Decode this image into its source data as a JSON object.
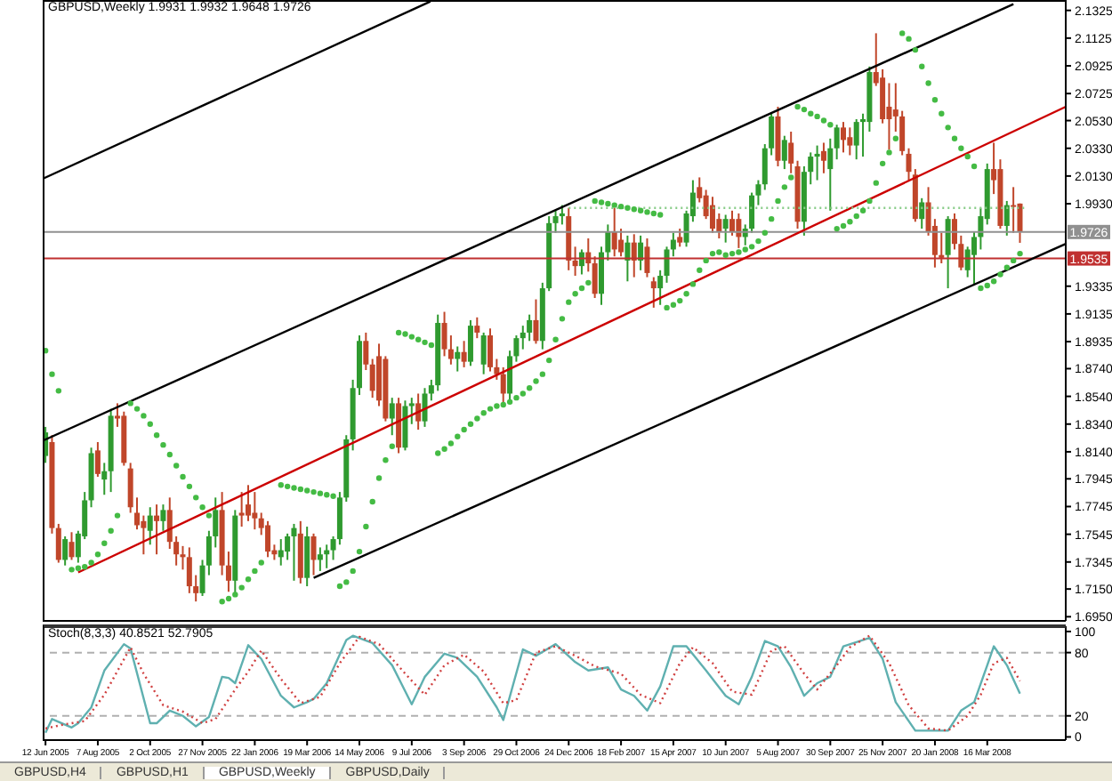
{
  "chart_data": [
    {
      "type": "candlestick",
      "title": "GBPUSD,Weekly  1.9931 1.9932 1.9648 1.9726",
      "tick_labels": "y",
      "colors": [
        "#2f9a2f",
        "#c0462a",
        "#c0462a",
        "#2f9a2f",
        "#c0462a",
        "#2f9a2f",
        "#2f9a2f",
        "#2f9a2f",
        "#c0462a",
        "#2f9a2f",
        "#2f9a2f",
        "#c0462a",
        "#c0462a",
        "#c0462a",
        "#c0462a",
        "#c0462a",
        "#2f9a2f",
        "#c0462a",
        "#2f9a2f",
        "#c0462a",
        "#c0462a",
        "#c0462a",
        "#c0462a",
        "#c0462a",
        "#2f9a2f",
        "#2f9a2f",
        "#2f9a2f",
        "#c0462a",
        "#c0462a",
        "#2f9a2f",
        "#c0462a",
        "#c0462a",
        "#c0462a",
        "#c0462a",
        "#c0462a",
        "#c0462a",
        "#2f9a2f",
        "#2f9a2f",
        "#2f9a2f",
        "#c0462a",
        "#2f9a2f",
        "#c0462a",
        "#2f9a2f",
        "#2f9a2f",
        "#2f9a2f",
        "#2f9a2f",
        "#2f9a2f",
        "#2f9a2f",
        "#2f9a2f",
        "#c0462a",
        "#c0462a",
        "#c0462a",
        "#c0462a",
        "#2f9a2f",
        "#c0462a",
        "#2f9a2f",
        "#2f9a2f",
        "#c0462a",
        "#2f9a2f",
        "#2f9a2f",
        "#2f9a2f",
        "#c0462a",
        "#c0462a",
        "#2f9a2f",
        "#c0462a",
        "#2f9a2f",
        "#c0462a",
        "#2f9a2f",
        "#c0462a",
        "#c0462a",
        "#c0462a",
        "#2f9a2f",
        "#2f9a2f",
        "#2f9a2f",
        "#2f9a2f",
        "#c0462a",
        "#2f9a2f",
        "#2f9a2f",
        "#2f9a2f",
        "#2f9a2f",
        "#c0462a",
        "#c0462a",
        "#2f9a2f",
        "#c0462a",
        "#c0462a",
        "#2f9a2f",
        "#2f9a2f",
        "#c0462a",
        "#c0462a",
        "#2f9a2f",
        "#c0462a",
        "#2f9a2f",
        "#c0462a",
        "#c0462a",
        "#2f9a2f",
        "#2f9a2f",
        "#2f9a2f",
        "#c0462a",
        "#2f9a2f",
        "#2f9a2f",
        "#c0462a",
        "#c0462a",
        "#c0462a",
        "#c0462a",
        "#2f9a2f",
        "#c0462a",
        "#c0462a",
        "#2f9a2f",
        "#2f9a2f",
        "#2f9a2f",
        "#2f9a2f",
        "#2f9a2f",
        "#c0462a",
        "#2f9a2f",
        "#c0462a",
        "#c0462a",
        "#2f9a2f",
        "#2f9a2f",
        "#2f9a2f",
        "#c0462a",
        "#2f9a2f",
        "#2f9a2f",
        "#c0462a",
        "#c0462a",
        "#2f9a2f",
        "#2f9a2f",
        "#2f9a2f",
        "#c0462a",
        "#c0462a",
        "#c0462a",
        "#c0462a",
        "#c0462a",
        "#c0462a",
        "#c0462a",
        "#2f9a2f",
        "#c0462a",
        "#c0462a",
        "#c0462a",
        "#2f9a2f",
        "#c0462a",
        "#c0462a",
        "#2f9a2f",
        "#2f9a2f",
        "#2f9a2f",
        "#2f9a2f",
        "#c0462a",
        "#c0462a",
        "#2f9a2f",
        "#c0462a",
        "#c0462a"
      ],
      "x": [
        "2005-06-12",
        "2005-06-19",
        "2005-06-26",
        "2005-07-03",
        "2005-07-10",
        "2005-07-17",
        "2005-07-24",
        "2005-07-31",
        "2005-08-07",
        "2005-08-14",
        "2005-08-21",
        "2005-08-28",
        "2005-09-04",
        "2005-09-11",
        "2005-09-18",
        "2005-09-25",
        "2005-10-02",
        "2005-10-09",
        "2005-10-16",
        "2005-10-23",
        "2005-10-30",
        "2005-11-06",
        "2005-11-13",
        "2005-11-20",
        "2005-11-27",
        "2005-12-04",
        "2005-12-11",
        "2005-12-18",
        "2005-12-25",
        "2006-01-01",
        "2006-01-08",
        "2006-01-15",
        "2006-01-22",
        "2006-01-29",
        "2006-02-05",
        "2006-02-12",
        "2006-02-19",
        "2006-02-26",
        "2006-03-05",
        "2006-03-12",
        "2006-03-19",
        "2006-03-26",
        "2006-04-02",
        "2006-04-09",
        "2006-04-16",
        "2006-04-23",
        "2006-04-30",
        "2006-05-07",
        "2006-05-14",
        "2006-05-21",
        "2006-05-28",
        "2006-06-04",
        "2006-06-11",
        "2006-06-18",
        "2006-06-25",
        "2006-07-02",
        "2006-07-09",
        "2006-07-16",
        "2006-07-23",
        "2006-07-30",
        "2006-08-06",
        "2006-08-13",
        "2006-08-20",
        "2006-08-27",
        "2006-09-03",
        "2006-09-10",
        "2006-09-17",
        "2006-09-24",
        "2006-10-01",
        "2006-10-08",
        "2006-10-15",
        "2006-10-22",
        "2006-10-29",
        "2006-11-05",
        "2006-11-12",
        "2006-11-19",
        "2006-11-26",
        "2006-12-03",
        "2006-12-10",
        "2006-12-17",
        "2006-12-24",
        "2006-12-31",
        "2007-01-07",
        "2007-01-14",
        "2007-01-21",
        "2007-01-28",
        "2007-02-04",
        "2007-02-11",
        "2007-02-18",
        "2007-02-25",
        "2007-03-04",
        "2007-03-11",
        "2007-03-18",
        "2007-03-25",
        "2007-04-01",
        "2007-04-08",
        "2007-04-15",
        "2007-04-22",
        "2007-04-29",
        "2007-05-06",
        "2007-05-13",
        "2007-05-20",
        "2007-05-27",
        "2007-06-03",
        "2007-06-10",
        "2007-06-17",
        "2007-06-24",
        "2007-07-01",
        "2007-07-08",
        "2007-07-15",
        "2007-07-22",
        "2007-07-29",
        "2007-08-05",
        "2007-08-12",
        "2007-08-19",
        "2007-08-26",
        "2007-09-02",
        "2007-09-09",
        "2007-09-16",
        "2007-09-23",
        "2007-09-30",
        "2007-10-07",
        "2007-10-14",
        "2007-10-21",
        "2007-10-28",
        "2007-11-04",
        "2007-11-11",
        "2007-11-18",
        "2007-11-25",
        "2007-12-02",
        "2007-12-09",
        "2007-12-16",
        "2007-12-23",
        "2007-12-30",
        "2008-01-06",
        "2008-01-13",
        "2008-01-20",
        "2008-01-27",
        "2008-02-03",
        "2008-02-10",
        "2008-02-17",
        "2008-02-24",
        "2008-03-02",
        "2008-03-09",
        "2008-03-16",
        "2008-03-23",
        "2008-03-30",
        "2008-04-06",
        "2008-04-13",
        "2008-04-20"
      ],
      "ohlc": [
        [
          1.811,
          1.832,
          1.806,
          1.828
        ],
        [
          1.821,
          1.826,
          1.755,
          1.759
        ],
        [
          1.759,
          1.762,
          1.734,
          1.736
        ],
        [
          1.736,
          1.753,
          1.732,
          1.751
        ],
        [
          1.749,
          1.756,
          1.736,
          1.738
        ],
        [
          1.738,
          1.757,
          1.734,
          1.755
        ],
        [
          1.753,
          1.785,
          1.751,
          1.779
        ],
        [
          1.779,
          1.817,
          1.774,
          1.813
        ],
        [
          1.815,
          1.821,
          1.796,
          1.798
        ],
        [
          1.794,
          1.806,
          1.783,
          1.8
        ],
        [
          1.8,
          1.845,
          1.785,
          1.84
        ],
        [
          1.84,
          1.849,
          1.832,
          1.838
        ],
        [
          1.84,
          1.843,
          1.804,
          1.806
        ],
        [
          1.802,
          1.806,
          1.77,
          1.774
        ],
        [
          1.77,
          1.781,
          1.758,
          1.761
        ],
        [
          1.764,
          1.768,
          1.74,
          1.759
        ],
        [
          1.757,
          1.774,
          1.747,
          1.768
        ],
        [
          1.768,
          1.776,
          1.74,
          1.764
        ],
        [
          1.764,
          1.776,
          1.757,
          1.772
        ],
        [
          1.772,
          1.781,
          1.744,
          1.749
        ],
        [
          1.749,
          1.753,
          1.732,
          1.74
        ],
        [
          1.74,
          1.746,
          1.729,
          1.738
        ],
        [
          1.738,
          1.745,
          1.712,
          1.717
        ],
        [
          1.717,
          1.725,
          1.706,
          1.712
        ],
        [
          1.712,
          1.736,
          1.71,
          1.732
        ],
        [
          1.732,
          1.757,
          1.725,
          1.753
        ],
        [
          1.753,
          1.781,
          1.745,
          1.772
        ],
        [
          1.772,
          1.785,
          1.725,
          1.732
        ],
        [
          1.732,
          1.742,
          1.713,
          1.721
        ],
        [
          1.721,
          1.772,
          1.712,
          1.768
        ],
        [
          1.77,
          1.785,
          1.76,
          1.768
        ],
        [
          1.776,
          1.79,
          1.764,
          1.768
        ],
        [
          1.77,
          1.785,
          1.758,
          1.766
        ],
        [
          1.766,
          1.77,
          1.754,
          1.759
        ],
        [
          1.761,
          1.764,
          1.738,
          1.742
        ],
        [
          1.743,
          1.747,
          1.736,
          1.74
        ],
        [
          1.738,
          1.751,
          1.732,
          1.743
        ],
        [
          1.742,
          1.755,
          1.736,
          1.753
        ],
        [
          1.753,
          1.762,
          1.721,
          1.759
        ],
        [
          1.755,
          1.764,
          1.719,
          1.723
        ],
        [
          1.723,
          1.76,
          1.717,
          1.753
        ],
        [
          1.753,
          1.755,
          1.725,
          1.736
        ],
        [
          1.736,
          1.745,
          1.728,
          1.74
        ],
        [
          1.74,
          1.747,
          1.73,
          1.743
        ],
        [
          1.743,
          1.753,
          1.736,
          1.751
        ],
        [
          1.751,
          1.785,
          1.747,
          1.781
        ],
        [
          1.781,
          1.826,
          1.778,
          1.823
        ],
        [
          1.823,
          1.866,
          1.815,
          1.86
        ],
        [
          1.86,
          1.898,
          1.855,
          1.894
        ],
        [
          1.894,
          1.9,
          1.873,
          1.877
        ],
        [
          1.877,
          1.881,
          1.853,
          1.858
        ],
        [
          1.883,
          1.892,
          1.847,
          1.851
        ],
        [
          1.881,
          1.883,
          1.836,
          1.838
        ],
        [
          1.838,
          1.853,
          1.826,
          1.849
        ],
        [
          1.849,
          1.853,
          1.813,
          1.817
        ],
        [
          1.817,
          1.851,
          1.815,
          1.847
        ],
        [
          1.847,
          1.853,
          1.834,
          1.849
        ],
        [
          1.849,
          1.856,
          1.83,
          1.836
        ],
        [
          1.836,
          1.86,
          1.832,
          1.856
        ],
        [
          1.856,
          1.866,
          1.851,
          1.862
        ],
        [
          1.862,
          1.913,
          1.858,
          1.907
        ],
        [
          1.907,
          1.915,
          1.883,
          1.888
        ],
        [
          1.888,
          1.898,
          1.877,
          1.881
        ],
        [
          1.881,
          1.89,
          1.872,
          1.886
        ],
        [
          1.886,
          1.894,
          1.875,
          1.879
        ],
        [
          1.879,
          1.909,
          1.876,
          1.905
        ],
        [
          1.905,
          1.911,
          1.896,
          1.9
        ],
        [
          1.877,
          1.9,
          1.87,
          1.898
        ],
        [
          1.898,
          1.903,
          1.872,
          1.875
        ],
        [
          1.875,
          1.881,
          1.866,
          1.87
        ],
        [
          1.87,
          1.875,
          1.849,
          1.856
        ],
        [
          1.856,
          1.887,
          1.851,
          1.883
        ],
        [
          1.883,
          1.898,
          1.879,
          1.896
        ],
        [
          1.896,
          1.905,
          1.888,
          1.9
        ],
        [
          1.9,
          1.913,
          1.894,
          1.909
        ],
        [
          1.909,
          1.924,
          1.892,
          1.894
        ],
        [
          1.894,
          1.936,
          1.888,
          1.932
        ],
        [
          1.932,
          1.984,
          1.93,
          1.979
        ],
        [
          1.979,
          1.988,
          1.972,
          1.984
        ],
        [
          1.984,
          1.992,
          1.978,
          1.986
        ],
        [
          1.984,
          1.99,
          1.945,
          1.952
        ],
        [
          1.952,
          1.962,
          1.941,
          1.948
        ],
        [
          1.948,
          1.96,
          1.942,
          1.958
        ],
        [
          1.958,
          1.968,
          1.944,
          1.95
        ],
        [
          1.95,
          1.955,
          1.925,
          1.928
        ],
        [
          1.928,
          1.962,
          1.92,
          1.958
        ],
        [
          1.958,
          1.978,
          1.952,
          1.973
        ],
        [
          1.973,
          1.99,
          1.955,
          1.96
        ],
        [
          1.967,
          1.975,
          1.955,
          1.958
        ],
        [
          1.952,
          1.97,
          1.937,
          1.965
        ],
        [
          1.965,
          1.971,
          1.94,
          1.952
        ],
        [
          1.952,
          1.97,
          1.945,
          1.965
        ],
        [
          1.962,
          1.968,
          1.94,
          1.943
        ],
        [
          1.937,
          1.94,
          1.918,
          1.932
        ],
        [
          1.932,
          1.945,
          1.92,
          1.941
        ],
        [
          1.941,
          1.962,
          1.936,
          1.96
        ],
        [
          1.96,
          1.972,
          1.955,
          1.967
        ],
        [
          1.969,
          1.975,
          1.962,
          1.965
        ],
        [
          1.965,
          1.988,
          1.962,
          1.986
        ],
        [
          1.984,
          2.01,
          1.98,
          2.001
        ],
        [
          2.005,
          2.012,
          1.994,
          1.997
        ],
        [
          1.999,
          2.003,
          1.982,
          1.984
        ],
        [
          1.992,
          1.998,
          1.972,
          1.975
        ],
        [
          1.982,
          1.986,
          1.968,
          1.973
        ],
        [
          1.975,
          1.985,
          1.965,
          1.982
        ],
        [
          1.982,
          1.988,
          1.97,
          1.973
        ],
        [
          1.982,
          1.986,
          1.961,
          1.969
        ],
        [
          1.969,
          1.978,
          1.963,
          1.975
        ],
        [
          1.975,
          2.001,
          1.972,
          1.999
        ],
        [
          1.999,
          2.01,
          1.992,
          2.007
        ],
        [
          2.007,
          2.036,
          2.003,
          2.033
        ],
        [
          2.033,
          2.058,
          2.028,
          2.056
        ],
        [
          2.056,
          2.063,
          2.02,
          2.024
        ],
        [
          2.024,
          2.042,
          2.018,
          2.039
        ],
        [
          2.037,
          2.045,
          2.015,
          2.022
        ],
        [
          2.02,
          2.024,
          1.975,
          1.98
        ],
        [
          1.98,
          2.02,
          1.97,
          2.016
        ],
        [
          2.016,
          2.03,
          2.007,
          2.027
        ],
        [
          2.027,
          2.035,
          2.01,
          2.029
        ],
        [
          2.031,
          2.037,
          2.015,
          2.024
        ],
        [
          2.018,
          2.04,
          1.988,
          2.033
        ],
        [
          2.033,
          2.05,
          2.025,
          2.048
        ],
        [
          2.048,
          2.052,
          2.03,
          2.039
        ],
        [
          2.041,
          2.048,
          2.028,
          2.035
        ],
        [
          2.035,
          2.054,
          2.025,
          2.052
        ],
        [
          2.052,
          2.058,
          2.027,
          2.054
        ],
        [
          2.052,
          2.092,
          2.045,
          2.088
        ],
        [
          2.088,
          2.116,
          2.078,
          2.08
        ],
        [
          2.084,
          2.09,
          2.051,
          2.054
        ],
        [
          2.063,
          2.08,
          2.032,
          2.054
        ],
        [
          2.061,
          2.08,
          2.045,
          2.056
        ],
        [
          2.056,
          2.06,
          2.028,
          2.031
        ],
        [
          2.029,
          2.033,
          2.01,
          2.016
        ],
        [
          2.014,
          2.018,
          1.98,
          1.982
        ],
        [
          1.982,
          1.997,
          1.975,
          1.994
        ],
        [
          1.994,
          2.005,
          1.97,
          1.973
        ],
        [
          1.977,
          1.982,
          1.947,
          1.956
        ],
        [
          1.956,
          1.972,
          1.95,
          1.954
        ],
        [
          1.956,
          1.984,
          1.932,
          1.982
        ],
        [
          1.982,
          1.986,
          1.96,
          1.964
        ],
        [
          1.964,
          1.97,
          1.945,
          1.947
        ],
        [
          1.945,
          1.962,
          1.94,
          1.96
        ],
        [
          1.956,
          1.973,
          1.934,
          1.969
        ],
        [
          1.969,
          1.99,
          1.96,
          1.984
        ],
        [
          1.982,
          2.022,
          1.978,
          2.018
        ],
        [
          2.018,
          2.037,
          2.0,
          2.01
        ],
        [
          2.018,
          2.025,
          1.975,
          1.977
        ],
        [
          1.977,
          1.995,
          1.97,
          1.992
        ],
        [
          1.992,
          2.005,
          1.972,
          1.991
        ],
        [
          1.9931,
          1.9932,
          1.9648,
          1.9726
        ]
      ],
      "xlim": [
        "2005-06-09",
        "2008-06-08"
      ],
      "ylim": [
        1.692,
        2.14
      ],
      "yticks": [
        2.1325,
        2.1125,
        2.0925,
        2.0725,
        {
          "value": 2.053,
          "label": "2.0530"
        },
        {
          "value": 2.033,
          "label": "2.0330"
        },
        {
          "value": 2.013,
          "label": "2.0130"
        },
        {
          "value": 1.993,
          "label": "1.9930"
        },
        1.9335,
        1.9135,
        1.8935,
        {
          "value": 1.874,
          "label": "1.8740"
        },
        {
          "value": 1.854,
          "label": "1.8540"
        },
        {
          "value": 1.834,
          "label": "1.8340"
        },
        {
          "value": 1.814,
          "label": "1.8140"
        },
        1.7945,
        1.7745,
        1.7545,
        1.7345,
        {
          "value": 1.715,
          "label": "1.7150"
        },
        {
          "value": 1.695,
          "label": "1.6950"
        }
      ],
      "ref_lines": [
        {
          "axis": "y",
          "value": 1.9726,
          "label": "1.9726",
          "color": "#909090"
        },
        {
          "axis": "y",
          "value": 1.9535,
          "label": "1.9535",
          "color": "#c03030"
        }
      ],
      "series": [
        {
          "type": "line",
          "x": [
            "2005-06-09",
            "2006-07-29"
          ],
          "values": [
            2.011,
            2.139
          ],
          "color": "#000000",
          "line_style": "solid"
        },
        {
          "type": "line",
          "x": [
            "2005-06-09",
            "2008-04-13"
          ],
          "values": [
            1.822,
            2.137
          ],
          "color": "#000000",
          "line_style": "solid"
        },
        {
          "type": "line",
          "x": [
            "2005-07-17",
            "2008-06-08"
          ],
          "values": [
            1.727,
            2.063
          ],
          "color": "#cc0000",
          "line_style": "solid"
        },
        {
          "type": "line",
          "x": [
            "2006-03-26",
            "2008-06-08"
          ],
          "values": [
            1.723,
            1.964
          ],
          "color": "#000000",
          "line_style": "solid"
        },
        {
          "type": "line",
          "x": [
            "2006-12-24",
            "2008-04-27"
          ],
          "values": [
            1.99,
            1.99
          ],
          "color": "#88cc88",
          "line_style": "dotted"
        },
        {
          "type": "scatter",
          "marker": "circle",
          "color": "#44bb44",
          "x": [
            "2005-06-12",
            "2005-06-19",
            "2005-06-26",
            "2005-07-10",
            "2005-07-17",
            "2005-07-24",
            "2005-07-31",
            "2005-08-07",
            "2005-08-14",
            "2005-08-21",
            "2005-08-28",
            "2005-09-11",
            "2005-09-18",
            "2005-09-25",
            "2005-10-02",
            "2005-10-09",
            "2005-10-16",
            "2005-10-23",
            "2005-10-30",
            "2005-11-06",
            "2005-11-13",
            "2005-11-20",
            "2005-11-27",
            "2005-12-04",
            "2005-12-18",
            "2005-12-25",
            "2006-01-01",
            "2006-01-08",
            "2006-01-15",
            "2006-01-22",
            "2006-01-29",
            "2006-02-19",
            "2006-02-26",
            "2006-03-05",
            "2006-03-12",
            "2006-03-19",
            "2006-03-26",
            "2006-04-02",
            "2006-04-09",
            "2006-04-16",
            "2006-04-23",
            "2006-04-30",
            "2006-05-07",
            "2006-05-14",
            "2006-05-21",
            "2006-05-28",
            "2006-06-04",
            "2006-06-11",
            "2006-06-18",
            "2006-06-25",
            "2006-07-02",
            "2006-07-09",
            "2006-07-16",
            "2006-07-23",
            "2006-07-30",
            "2006-08-06",
            "2006-08-13",
            "2006-08-20",
            "2006-08-27",
            "2006-09-03",
            "2006-09-10",
            "2006-09-17",
            "2006-09-24",
            "2006-10-01",
            "2006-10-08",
            "2006-10-15",
            "2006-10-22",
            "2006-10-29",
            "2006-11-05",
            "2006-11-12",
            "2006-11-19",
            "2006-11-26",
            "2006-12-03",
            "2006-12-10",
            "2006-12-17",
            "2006-12-24",
            "2006-12-31",
            "2007-01-07",
            "2007-01-14",
            "2007-01-21",
            "2007-01-28",
            "2007-02-04",
            "2007-02-11",
            "2007-02-18",
            "2007-02-25",
            "2007-03-04",
            "2007-03-11",
            "2007-03-18",
            "2007-03-25",
            "2007-04-01",
            "2007-04-08",
            "2007-04-15",
            "2007-04-22",
            "2007-04-29",
            "2007-05-06",
            "2007-05-13",
            "2007-05-20",
            "2007-05-27",
            "2007-06-03",
            "2007-06-10",
            "2007-06-17",
            "2007-06-24",
            "2007-07-01",
            "2007-07-08",
            "2007-07-15",
            "2007-07-22",
            "2007-07-29",
            "2007-08-05",
            "2007-08-12",
            "2007-08-19",
            "2007-08-26",
            "2007-09-02",
            "2007-09-09",
            "2007-09-16",
            "2007-09-23",
            "2007-09-30",
            "2007-10-07",
            "2007-10-14",
            "2007-10-21",
            "2007-10-28",
            "2007-11-04",
            "2007-11-11",
            "2007-11-18",
            "2007-11-25",
            "2007-12-02",
            "2007-12-09",
            "2007-12-16",
            "2007-12-23",
            "2007-12-30",
            "2008-01-06",
            "2008-01-13",
            "2008-01-20",
            "2008-01-27",
            "2008-02-03",
            "2008-02-10",
            "2008-02-17",
            "2008-02-24",
            "2008-03-02",
            "2008-03-09",
            "2008-03-16",
            "2008-03-23",
            "2008-03-30",
            "2008-04-06",
            "2008-04-13",
            "2008-04-20"
          ],
          "values": [
            1.887,
            1.87,
            1.858,
            1.729,
            1.73,
            1.731,
            1.734,
            1.74,
            1.748,
            1.757,
            1.768,
            1.849,
            1.845,
            1.84,
            1.834,
            1.826,
            1.819,
            1.812,
            1.804,
            1.796,
            1.789,
            1.781,
            1.774,
            1.768,
            1.706,
            1.708,
            1.711,
            1.716,
            1.722,
            1.728,
            1.734,
            1.79,
            1.789,
            1.788,
            1.787,
            1.786,
            1.785,
            1.784,
            1.783,
            1.782,
            1.717,
            1.72,
            1.728,
            1.742,
            1.76,
            1.778,
            1.795,
            1.808,
            1.818,
            1.9,
            1.899,
            1.897,
            1.895,
            1.893,
            1.891,
            1.813,
            1.816,
            1.82,
            1.825,
            1.83,
            1.834,
            1.838,
            1.842,
            1.845,
            1.847,
            1.848,
            1.85,
            1.853,
            1.856,
            1.86,
            1.865,
            1.87,
            1.88,
            1.895,
            1.91,
            1.922,
            1.928,
            1.932,
            1.936,
            1.995,
            1.994,
            1.993,
            1.992,
            1.991,
            1.99,
            1.989,
            1.988,
            1.987,
            1.986,
            1.985,
            1.918,
            1.92,
            1.923,
            1.928,
            1.935,
            1.945,
            1.952,
            1.957,
            1.958,
            1.956,
            1.957,
            1.958,
            1.96,
            1.962,
            1.966,
            1.972,
            1.982,
            1.995,
            2.005,
            2.012,
            2.063,
            2.061,
            2.058,
            2.056,
            2.053,
            2.05,
            1.975,
            1.977,
            1.98,
            1.984,
            1.988,
            1.995,
            2.008,
            2.022,
            2.03,
            2.04,
            2.116,
            2.112,
            2.104,
            2.092,
            2.08,
            2.068,
            2.058,
            2.048,
            2.04,
            2.033,
            2.027,
            2.02,
            1.932,
            1.934,
            1.937,
            1.942,
            1.947,
            1.952,
            1.957
          ]
        }
      ]
    },
    {
      "type": "line",
      "title": "Stoch(8,3,3) 40.8521 52.7905",
      "xlim": [
        "2005-06-09",
        "2008-06-08"
      ],
      "ylim": [
        -3,
        105
      ],
      "yticks": [
        0,
        20,
        80,
        100
      ],
      "xticks": [
        {
          "value": "2005-06-12",
          "label": "12 Jun 2005"
        },
        {
          "value": "2005-08-07",
          "label": "7 Aug 2005"
        },
        {
          "value": "2005-10-02",
          "label": "2 Oct 2005"
        },
        {
          "value": "2005-11-27",
          "label": "27 Nov 2005"
        },
        {
          "value": "2006-01-22",
          "label": "22 Jan 2006"
        },
        {
          "value": "2006-03-19",
          "label": "19 Mar 2006"
        },
        {
          "value": "2006-05-14",
          "label": "14 May 2006"
        },
        {
          "value": "2006-07-09",
          "label": "9 Jul 2006"
        },
        {
          "value": "2006-09-03",
          "label": "3 Sep 2006"
        },
        {
          "value": "2006-10-29",
          "label": "29 Oct 2006"
        },
        {
          "value": "2006-12-24",
          "label": "24 Dec 2006"
        },
        {
          "value": "2007-02-18",
          "label": "18 Feb 2007"
        },
        {
          "value": "2007-04-15",
          "label": "15 Apr 2007"
        },
        {
          "value": "2007-06-10",
          "label": "10 Jun 2007"
        },
        {
          "value": "2007-08-05",
          "label": "5 Aug 2007"
        },
        {
          "value": "2007-09-30",
          "label": "30 Sep 2007"
        },
        {
          "value": "2007-11-25",
          "label": "25 Nov 2007"
        },
        {
          "value": "2008-01-20",
          "label": "20 Jan 2008"
        },
        {
          "value": "2008-03-16",
          "label": "16 Mar 2008"
        }
      ],
      "ref_lines": [
        {
          "axis": "y",
          "value": 20,
          "color": "#b0b0b0",
          "line_style": "dashed"
        },
        {
          "axis": "y",
          "value": 80,
          "color": "#b0b0b0",
          "line_style": "dashed"
        }
      ],
      "annotations": [
        "GBPUSD,H4",
        "GBPUSD,H1",
        "GBPUSD,Weekly",
        "GBPUSD,Daily"
      ],
      "series": [
        {
          "color": "#5fb0b0",
          "line_style": "solid",
          "x": [
            "2005-06-12",
            "2005-06-19",
            "2005-07-10",
            "2005-07-17",
            "2005-07-31",
            "2005-08-14",
            "2005-09-04",
            "2005-09-11",
            "2005-10-02",
            "2005-10-09",
            "2005-10-23",
            "2005-11-06",
            "2005-11-20",
            "2005-12-04",
            "2005-12-18",
            "2005-12-25",
            "2006-01-01",
            "2006-01-15",
            "2006-01-29",
            "2006-02-19",
            "2006-03-05",
            "2006-03-19",
            "2006-03-26",
            "2006-04-09",
            "2006-04-30",
            "2006-05-07",
            "2006-05-28",
            "2006-06-18",
            "2006-07-09",
            "2006-07-23",
            "2006-08-13",
            "2006-08-27",
            "2006-09-17",
            "2006-10-08",
            "2006-10-15",
            "2006-11-05",
            "2006-11-19",
            "2006-12-10",
            "2006-12-31",
            "2007-01-14",
            "2007-02-04",
            "2007-02-18",
            "2007-03-04",
            "2007-03-18",
            "2007-04-01",
            "2007-04-15",
            "2007-04-29",
            "2007-05-20",
            "2007-06-10",
            "2007-06-24",
            "2007-07-08",
            "2007-07-22",
            "2007-08-05",
            "2007-08-19",
            "2007-09-02",
            "2007-09-16",
            "2007-09-30",
            "2007-10-14",
            "2007-11-11",
            "2007-11-25",
            "2007-12-09",
            "2007-12-30",
            "2008-01-20",
            "2008-02-03",
            "2008-02-17",
            "2008-03-02",
            "2008-03-16",
            "2008-03-23",
            "2008-04-06",
            "2008-04-20"
          ],
          "values": [
            4,
            17,
            9,
            13,
            28,
            63,
            88,
            84,
            13,
            13,
            25,
            20,
            10,
            19,
            57,
            56,
            51,
            87,
            74,
            39,
            28,
            33,
            36,
            51,
            92,
            96,
            89,
            68,
            31,
            57,
            79,
            75,
            57,
            28,
            16,
            83,
            77,
            88,
            71,
            63,
            66,
            45,
            39,
            25,
            48,
            86,
            86,
            63,
            39,
            31,
            57,
            91,
            86,
            66,
            39,
            51,
            57,
            86,
            94,
            74,
            33,
            6,
            6,
            6,
            25,
            33,
            68,
            86,
            68,
            41
          ]
        },
        {
          "color": "#d04040",
          "line_style": "dotted",
          "x": [
            "2005-06-12",
            "2005-07-03",
            "2005-07-24",
            "2005-08-14",
            "2005-09-11",
            "2005-09-25",
            "2005-10-16",
            "2005-11-06",
            "2005-11-27",
            "2005-12-11",
            "2006-01-01",
            "2006-01-15",
            "2006-01-29",
            "2006-02-19",
            "2006-03-12",
            "2006-04-02",
            "2006-04-23",
            "2006-05-14",
            "2006-06-04",
            "2006-07-02",
            "2006-07-23",
            "2006-08-13",
            "2006-09-03",
            "2006-09-24",
            "2006-10-15",
            "2006-10-29",
            "2006-11-19",
            "2006-12-10",
            "2006-12-31",
            "2007-01-21",
            "2007-02-18",
            "2007-03-11",
            "2007-04-01",
            "2007-04-22",
            "2007-05-06",
            "2007-05-27",
            "2007-06-17",
            "2007-07-08",
            "2007-07-29",
            "2007-08-12",
            "2007-09-02",
            "2007-09-16",
            "2007-10-07",
            "2007-10-21",
            "2007-11-11",
            "2007-12-02",
            "2007-12-23",
            "2008-01-13",
            "2008-02-03",
            "2008-02-24",
            "2008-03-09",
            "2008-03-23",
            "2008-04-06",
            "2008-04-20"
          ],
          "values": [
            8,
            12,
            15,
            40,
            85,
            60,
            30,
            24,
            13,
            17,
            45,
            62,
            82,
            55,
            32,
            38,
            70,
            95,
            88,
            60,
            40,
            68,
            78,
            62,
            32,
            35,
            80,
            86,
            77,
            67,
            60,
            40,
            32,
            70,
            85,
            70,
            43,
            40,
            82,
            86,
            60,
            45,
            68,
            85,
            96,
            70,
            30,
            8,
            6,
            20,
            40,
            70,
            75,
            53
          ]
        }
      ]
    }
  ]
}
